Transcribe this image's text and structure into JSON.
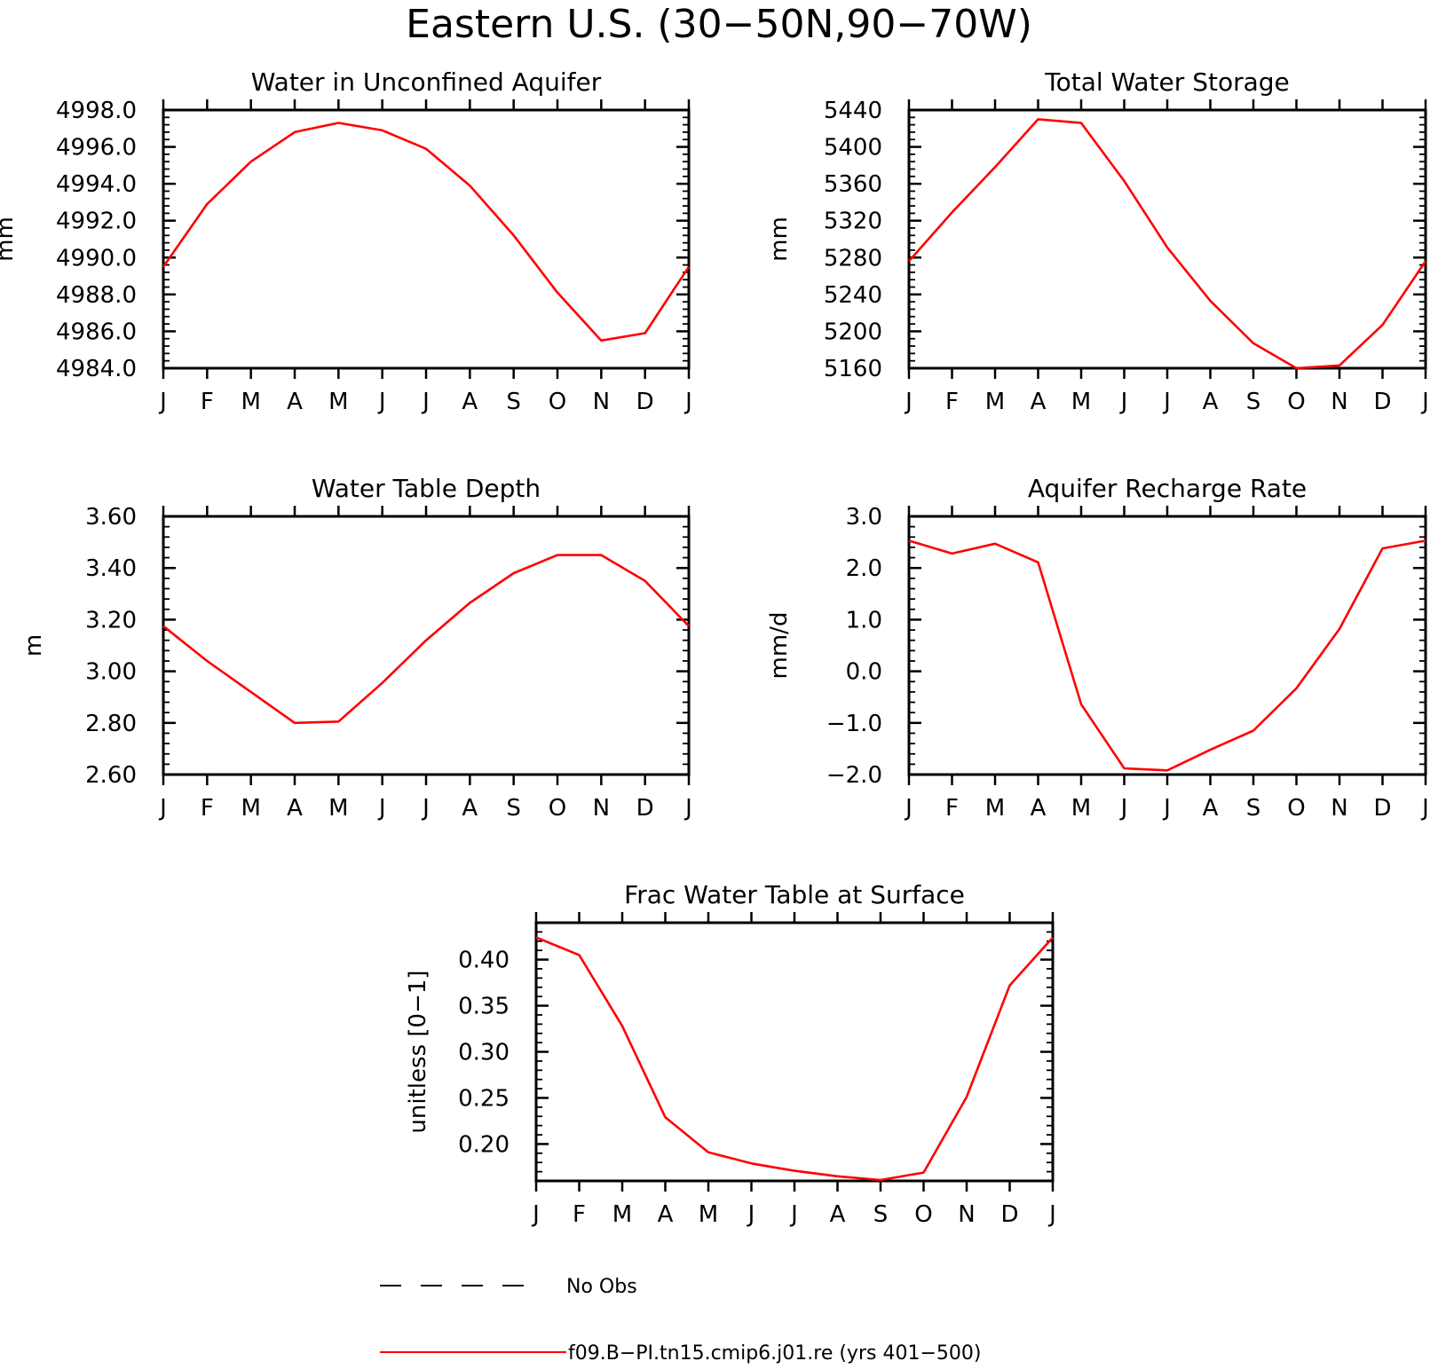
{
  "figure_title": "Eastern U.S. (30−50N,90−70W)",
  "colors": {
    "model": "#ff0000",
    "obs": "#000000",
    "axes": "#000000"
  },
  "legend": {
    "entries": [
      {
        "label": "No Obs",
        "style": "dashed",
        "color": "#000000"
      },
      {
        "label": "f09.B−PI.tn15.cmip6.j01.re (yrs 401−500)",
        "style": "solid",
        "color": "#ff0000"
      }
    ]
  },
  "chart_data": [
    {
      "type": "line",
      "title": "Water in Unconfined Aquifer",
      "ylabel": "mm",
      "xlabel": "",
      "categories": [
        "J",
        "F",
        "M",
        "A",
        "M",
        "J",
        "J",
        "A",
        "S",
        "O",
        "N",
        "D",
        "J"
      ],
      "ylim": [
        4984.0,
        4998.0
      ],
      "yticks": [
        "4984.0",
        "4986.0",
        "4988.0",
        "4990.0",
        "4992.0",
        "4994.0",
        "4996.0",
        "4998.0"
      ],
      "series": [
        {
          "values": [
            4989.5,
            4992.9,
            4995.2,
            4996.8,
            4997.3,
            4996.9,
            4995.9,
            4993.9,
            4991.2,
            4988.1,
            4985.5,
            4985.9,
            4989.5
          ]
        }
      ]
    },
    {
      "type": "line",
      "title": "Total Water Storage",
      "ylabel": "mm",
      "xlabel": "",
      "categories": [
        "J",
        "F",
        "M",
        "A",
        "M",
        "J",
        "J",
        "A",
        "S",
        "O",
        "N",
        "D",
        "J"
      ],
      "ylim": [
        5160,
        5440
      ],
      "yticks": [
        "5160",
        "5200",
        "5240",
        "5280",
        "5320",
        "5360",
        "5400",
        "5440"
      ],
      "series": [
        {
          "values": [
            5276,
            5329,
            5378,
            5430,
            5426,
            5363,
            5291,
            5233,
            5187,
            5160,
            5163,
            5207,
            5276
          ]
        }
      ]
    },
    {
      "type": "line",
      "title": "Water Table Depth",
      "ylabel": "m",
      "xlabel": "",
      "categories": [
        "J",
        "F",
        "M",
        "A",
        "M",
        "J",
        "J",
        "A",
        "S",
        "O",
        "N",
        "D",
        "J"
      ],
      "ylim": [
        2.6,
        3.6
      ],
      "yticks": [
        "2.60",
        "2.80",
        "3.00",
        "3.20",
        "3.40",
        "3.60"
      ],
      "series": [
        {
          "values": [
            3.175,
            3.04,
            2.92,
            2.8,
            2.805,
            2.955,
            3.12,
            3.265,
            3.38,
            3.45,
            3.45,
            3.35,
            3.175
          ]
        }
      ]
    },
    {
      "type": "line",
      "title": "Aquifer Recharge Rate",
      "ylabel": "mm/d",
      "xlabel": "",
      "categories": [
        "J",
        "F",
        "M",
        "A",
        "M",
        "J",
        "J",
        "A",
        "S",
        "O",
        "N",
        "D",
        "J"
      ],
      "ylim": [
        -2.0,
        3.0
      ],
      "yticks": [
        "−2.0",
        "−1.0",
        "0.0",
        "1.0",
        "2.0",
        "3.0"
      ],
      "series": [
        {
          "values": [
            2.53,
            2.28,
            2.47,
            2.11,
            -0.64,
            -1.88,
            -1.92,
            -1.52,
            -1.15,
            -0.33,
            0.82,
            2.38,
            2.53
          ]
        }
      ]
    },
    {
      "type": "line",
      "title": "Frac Water Table at Surface",
      "ylabel": "unitless [0−1]",
      "xlabel": "",
      "categories": [
        "J",
        "F",
        "M",
        "A",
        "M",
        "J",
        "J",
        "A",
        "S",
        "O",
        "N",
        "D",
        "J"
      ],
      "ylim": [
        0.16,
        0.44
      ],
      "yticks": [
        "0.20",
        "0.25",
        "0.30",
        "0.35",
        "0.40"
      ],
      "series": [
        {
          "values": [
            0.424,
            0.405,
            0.328,
            0.229,
            0.191,
            0.179,
            0.171,
            0.165,
            0.161,
            0.169,
            0.251,
            0.372,
            0.424
          ]
        }
      ]
    }
  ]
}
